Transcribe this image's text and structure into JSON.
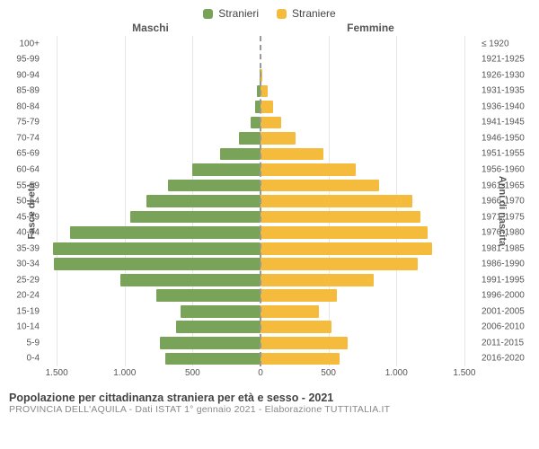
{
  "legend": {
    "male": {
      "label": "Stranieri",
      "color": "#7aa35a"
    },
    "female": {
      "label": "Straniere",
      "color": "#f5bb3c"
    }
  },
  "column_titles": {
    "left": "Maschi",
    "right": "Femmine"
  },
  "axis_labels": {
    "left": "Fasce di età",
    "right": "Anni di nascita"
  },
  "x_axis": {
    "max": 1600,
    "ticks_left": [
      1500,
      1000,
      500,
      0
    ],
    "ticks_right": [
      0,
      500,
      1000,
      1500
    ],
    "tick_labels_left": [
      "1.500",
      "1.000",
      "500",
      "0"
    ],
    "tick_labels_right": [
      "0",
      "500",
      "1.000",
      "1.500"
    ]
  },
  "rows": [
    {
      "age": "100+",
      "birth": "≤ 1920",
      "m": 0,
      "f": 0
    },
    {
      "age": "95-99",
      "birth": "1921-1925",
      "m": 0,
      "f": 0
    },
    {
      "age": "90-94",
      "birth": "1926-1930",
      "m": 5,
      "f": 10
    },
    {
      "age": "85-89",
      "birth": "1931-1935",
      "m": 25,
      "f": 55
    },
    {
      "age": "80-84",
      "birth": "1936-1940",
      "m": 40,
      "f": 95
    },
    {
      "age": "75-79",
      "birth": "1941-1945",
      "m": 70,
      "f": 150
    },
    {
      "age": "70-74",
      "birth": "1946-1950",
      "m": 160,
      "f": 260
    },
    {
      "age": "65-69",
      "birth": "1951-1955",
      "m": 300,
      "f": 460
    },
    {
      "age": "60-64",
      "birth": "1956-1960",
      "m": 500,
      "f": 700
    },
    {
      "age": "55-59",
      "birth": "1961-1965",
      "m": 680,
      "f": 870
    },
    {
      "age": "50-54",
      "birth": "1966-1970",
      "m": 840,
      "f": 1120
    },
    {
      "age": "45-49",
      "birth": "1971-1975",
      "m": 960,
      "f": 1180
    },
    {
      "age": "40-44",
      "birth": "1976-1980",
      "m": 1400,
      "f": 1230
    },
    {
      "age": "35-39",
      "birth": "1981-1985",
      "m": 1530,
      "f": 1260
    },
    {
      "age": "30-34",
      "birth": "1986-1990",
      "m": 1520,
      "f": 1160
    },
    {
      "age": "25-29",
      "birth": "1991-1995",
      "m": 1030,
      "f": 830
    },
    {
      "age": "20-24",
      "birth": "1996-2000",
      "m": 770,
      "f": 560
    },
    {
      "age": "15-19",
      "birth": "2001-2005",
      "m": 590,
      "f": 430
    },
    {
      "age": "10-14",
      "birth": "2006-2010",
      "m": 620,
      "f": 520
    },
    {
      "age": "5-9",
      "birth": "2011-2015",
      "m": 740,
      "f": 640
    },
    {
      "age": "0-4",
      "birth": "2016-2020",
      "m": 700,
      "f": 580
    }
  ],
  "grid_color": "#e6e6e6",
  "footer": {
    "main": "Popolazione per cittadinanza straniera per età e sesso - 2021",
    "sub": "PROVINCIA DELL'AQUILA - Dati ISTAT 1° gennaio 2021 - Elaborazione TUTTITALIA.IT"
  }
}
